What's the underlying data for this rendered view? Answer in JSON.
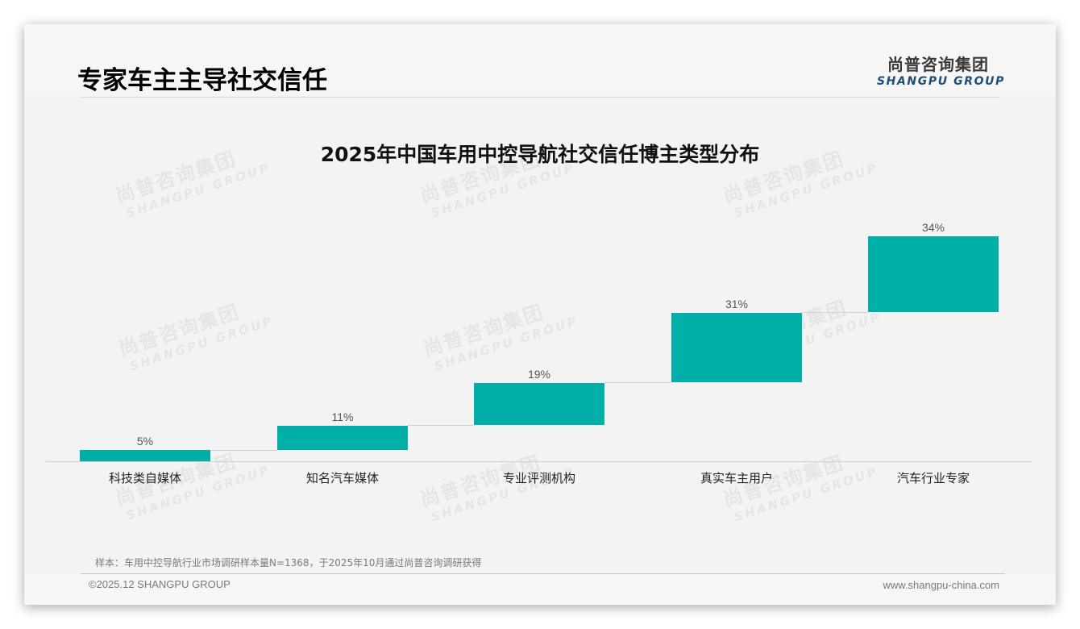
{
  "header": {
    "page_title": "专家车主主导社交信任",
    "logo_cn": "尚普咨询集团",
    "logo_en": "SHANGPU GROUP"
  },
  "watermark": {
    "cn": "尚普咨询集团",
    "en": "SHANGPU GROUP"
  },
  "chart_data": {
    "type": "bar",
    "subtype": "waterfall",
    "title": "2025年中国车用中控导航社交信任博主类型分布",
    "categories": [
      "科技类自媒体",
      "知名汽车媒体",
      "专业评测机构",
      "真实车主用户",
      "汽车行业专家"
    ],
    "values": [
      5,
      11,
      19,
      31,
      34
    ],
    "value_labels": [
      "5%",
      "11%",
      "19%",
      "31%",
      "34%"
    ],
    "unit": "%",
    "xlabel": "",
    "ylabel": "",
    "ylim": [
      0,
      100
    ],
    "grid": false,
    "legend": "none",
    "bar_color": "#00b0a8"
  },
  "footer": {
    "note": "样本：车用中控导航行业市场调研样本量N=1368，于2025年10月通过尚普咨询调研获得",
    "copyright": "©2025.12 SHANGPU GROUP",
    "website": "www.shangpu-china.com"
  }
}
